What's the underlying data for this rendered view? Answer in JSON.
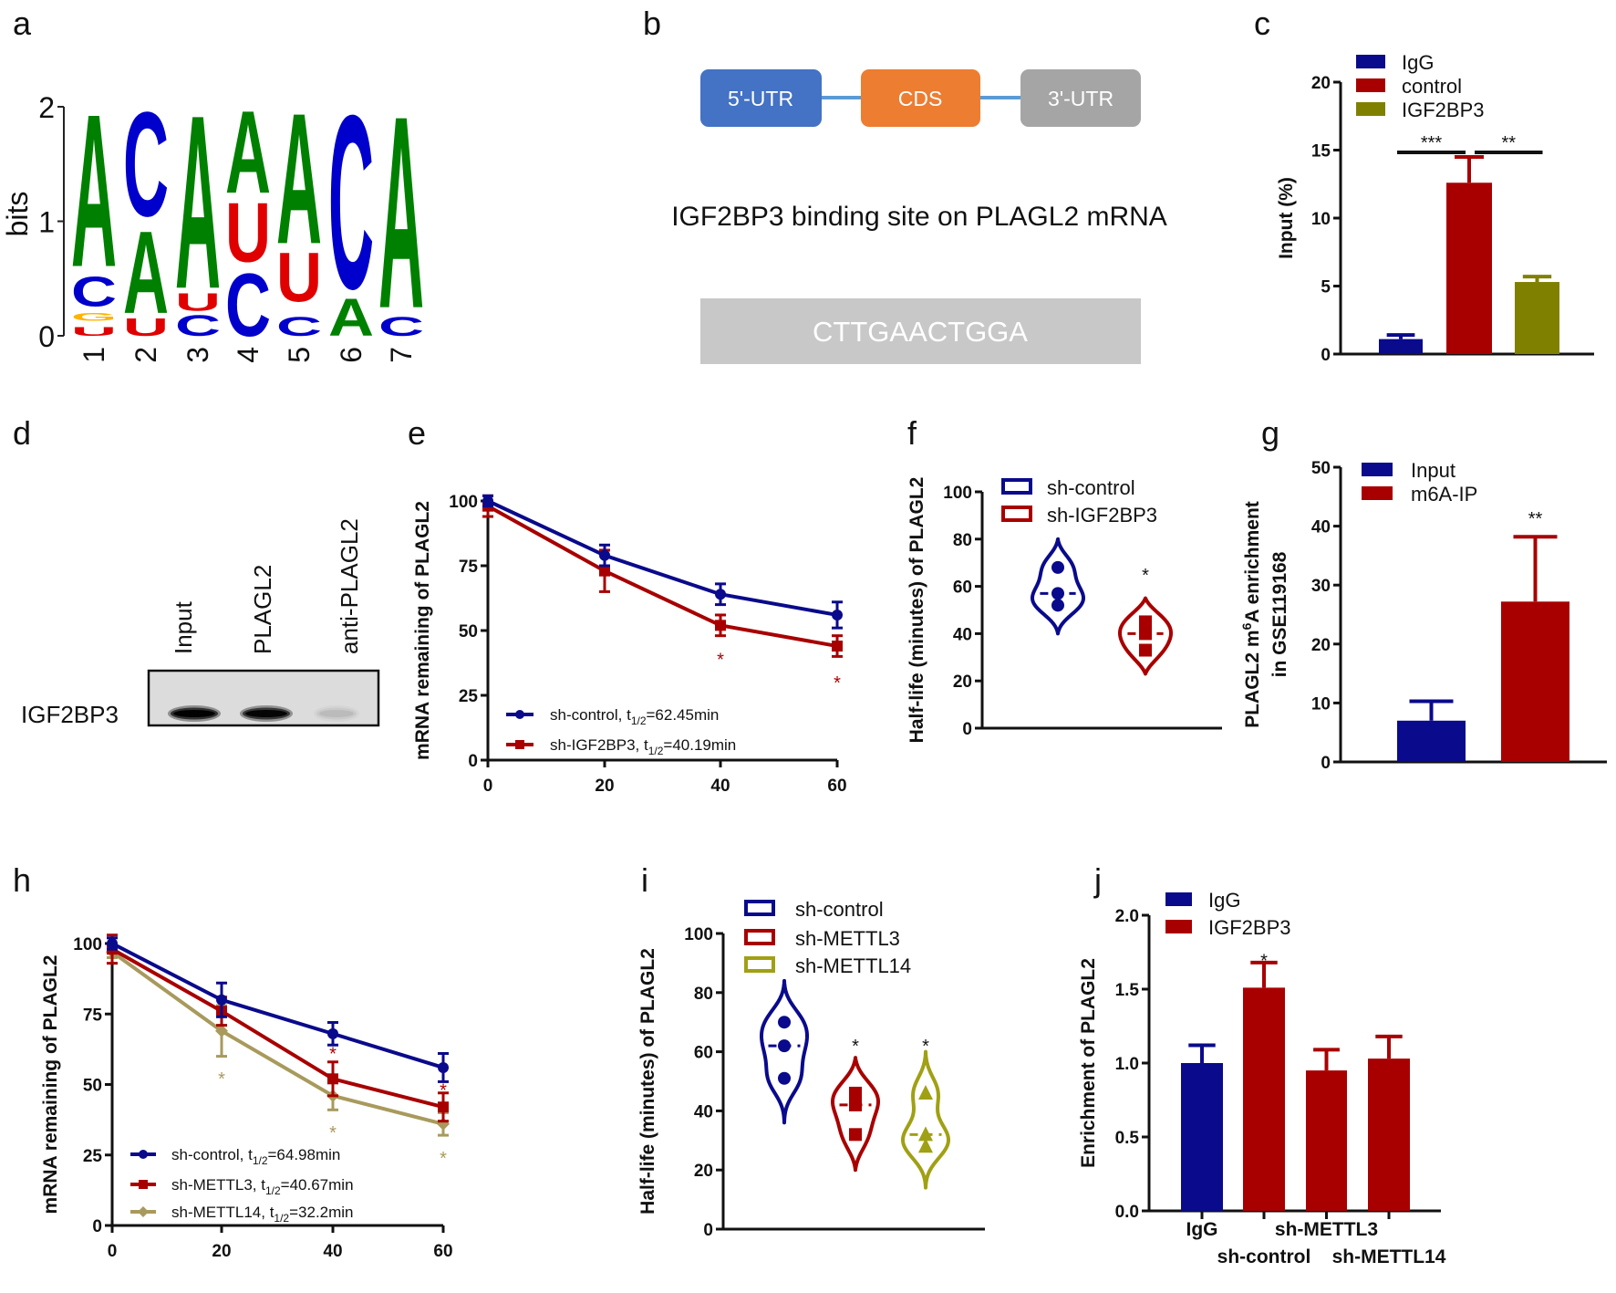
{
  "panel_labels": [
    "a",
    "b",
    "c",
    "d",
    "e",
    "f",
    "g",
    "h",
    "i",
    "j"
  ],
  "panel_b": {
    "boxes": [
      {
        "label": "5'-UTR",
        "color": "#4472c4"
      },
      {
        "label": "CDS",
        "color": "#ed7d31"
      },
      {
        "label": "3'-UTR",
        "color": "#a5a5a5"
      }
    ],
    "connector_color": "#5b9bd5",
    "caption": "IGF2BP3 binding site on PLAGL2 mRNA",
    "sequence": "CTTGAACTGGA",
    "sequence_box_color": "#c8c8c8"
  },
  "panel_d": {
    "lanes": [
      "Input",
      "PLAGL2",
      "anti-PLAGL2"
    ],
    "row_label": "IGF2BP3",
    "band_intensity": [
      1.0,
      0.95,
      0.08
    ]
  },
  "chart_data": [
    {
      "label": "a",
      "type": "sequence-logo",
      "ylabel": "bits",
      "ylim": [
        0,
        2
      ],
      "yticks": [
        "0",
        "1",
        "2"
      ],
      "positions": [
        "1",
        "2",
        "3",
        "4",
        "5",
        "6",
        "7"
      ],
      "letter_colors": {
        "A": "#008000",
        "C": "#0000cc",
        "G": "#ffb300",
        "U": "#e00000"
      },
      "stacks": [
        [
          {
            "letter": "U",
            "bottom": 0,
            "top": 0.08
          },
          {
            "letter": "G",
            "bottom": 0.13,
            "top": 0.2
          },
          {
            "letter": "C",
            "bottom": 0.26,
            "top": 0.53
          },
          {
            "letter": "A",
            "bottom": 0.61,
            "top": 2
          }
        ],
        [
          {
            "letter": "U",
            "bottom": 0,
            "top": 0.16
          },
          {
            "letter": "A",
            "bottom": 0.2,
            "top": 0.95
          },
          {
            "letter": "C",
            "bottom": 1.05,
            "top": 2
          }
        ],
        [
          {
            "letter": "C",
            "bottom": 0,
            "top": 0.19
          },
          {
            "letter": "U",
            "bottom": 0.22,
            "top": 0.38
          },
          {
            "letter": "A",
            "bottom": 0.42,
            "top": 2
          }
        ],
        [
          {
            "letter": "C",
            "bottom": 0,
            "top": 0.57
          },
          {
            "letter": "U",
            "bottom": 0.65,
            "top": 1.19
          },
          {
            "letter": "A",
            "bottom": 1.25,
            "top": 2
          }
        ],
        [
          {
            "letter": "C",
            "bottom": 0,
            "top": 0.17
          },
          {
            "letter": "U",
            "bottom": 0.3,
            "top": 0.75
          },
          {
            "letter": "A",
            "bottom": 0.81,
            "top": 2
          }
        ],
        [
          {
            "letter": "A",
            "bottom": 0,
            "top": 0.34
          },
          {
            "letter": "C",
            "bottom": 0.42,
            "top": 2
          }
        ],
        [
          {
            "letter": "C",
            "bottom": 0,
            "top": 0.17
          },
          {
            "letter": "A",
            "bottom": 0.25,
            "top": 2
          }
        ]
      ]
    },
    {
      "label": "c",
      "type": "bar",
      "ylabel": "Input (%)",
      "ylim": [
        0,
        20
      ],
      "yticks": [
        "0",
        "5",
        "10",
        "15",
        "20"
      ],
      "categories": [
        "IgG",
        "control",
        "IGF2BP3"
      ],
      "values": [
        1.1,
        12.6,
        5.3
      ],
      "error_upper": [
        1.4,
        14.5,
        5.7
      ],
      "colors": [
        "#0a0a8c",
        "#a80000",
        "#808000"
      ],
      "legend": [
        {
          "label": "IgG",
          "color": "#0a0a8c"
        },
        {
          "label": "control",
          "color": "#a80000"
        },
        {
          "label": "IGF2BP3",
          "color": "#808000"
        }
      ],
      "significance": [
        {
          "from": 0,
          "to": 1,
          "text": "***"
        },
        {
          "from": 1,
          "to": 2,
          "text": "**"
        }
      ]
    },
    {
      "label": "e",
      "type": "line",
      "ylabel": "mRNA remaining of PLAGL2",
      "ylim": [
        0,
        100
      ],
      "yticks": [
        "0",
        "25",
        "50",
        "75",
        "100"
      ],
      "x": [
        0,
        20,
        40,
        60
      ],
      "xticks": [
        "0",
        "20",
        "40",
        "60"
      ],
      "series": [
        {
          "name": "sh-control",
          "legend_before": "sh-control, t",
          "legend_sub": "1/2",
          "legend_after": "=62.45min",
          "color": "#0a0a8c",
          "marker": "circle",
          "values": [
            100,
            79,
            64,
            56
          ],
          "errors": [
            2,
            4,
            4,
            5
          ]
        },
        {
          "name": "sh-IGF2BP3",
          "legend_before": "sh-IGF2BP3, t",
          "legend_sub": "1/2",
          "legend_after": "=40.19min",
          "color": "#a80000",
          "marker": "square",
          "values": [
            98,
            73,
            52,
            44
          ],
          "errors": [
            4,
            8,
            4,
            4
          ]
        }
      ],
      "annotations": [
        {
          "x": 40,
          "y": 40,
          "text": "*",
          "color": "#a80000"
        },
        {
          "x": 60,
          "y": 31,
          "text": "*",
          "color": "#a80000"
        }
      ]
    },
    {
      "label": "f",
      "type": "violin",
      "ylabel": "Half-life (minutes) of PLAGL2",
      "ylim": [
        0,
        100
      ],
      "yticks": [
        "0",
        "20",
        "40",
        "60",
        "80",
        "100"
      ],
      "groups": [
        {
          "name": "sh-control",
          "color": "#0a0a8c",
          "marker": "circle",
          "points": [
            68,
            57,
            52
          ],
          "extent": [
            40,
            80
          ]
        },
        {
          "name": "sh-IGF2BP3",
          "color": "#a80000",
          "marker": "square",
          "points": [
            45,
            40,
            33
          ],
          "extent": [
            23,
            55
          ]
        }
      ],
      "annotations": [
        {
          "group": 1,
          "y": 66,
          "text": "*"
        }
      ]
    },
    {
      "label": "g",
      "type": "bar",
      "ylabel_parts": {
        "before": "PLAGL2 m",
        "sup": "6",
        "after": "A enrichment",
        "line2": "in GSE119168"
      },
      "ylim": [
        0,
        50
      ],
      "yticks": [
        "0",
        "10",
        "20",
        "30",
        "40",
        "50"
      ],
      "categories": [
        "Input",
        "m6A-IP"
      ],
      "values": [
        7,
        27.2
      ],
      "error_upper": [
        10.3,
        38.2
      ],
      "colors": [
        "#0a0a8c",
        "#a80000"
      ],
      "legend": [
        {
          "label": "Input",
          "color": "#0a0a8c"
        },
        {
          "label": "m6A-IP",
          "color": "#a80000"
        }
      ],
      "annotations": [
        {
          "category": 1,
          "y": 41.5,
          "text": "**"
        }
      ]
    },
    {
      "label": "h",
      "type": "line",
      "ylabel": "mRNA remaining of PLAGL2",
      "ylim": [
        0,
        100
      ],
      "yticks": [
        "0",
        "25",
        "50",
        "75",
        "100"
      ],
      "x": [
        0,
        20,
        40,
        60
      ],
      "xticks": [
        "0",
        "20",
        "40",
        "60"
      ],
      "series": [
        {
          "name": "sh-control",
          "legend_before": "sh-control, t",
          "legend_sub": "1/2",
          "legend_after": "=64.98min",
          "color": "#0a0a8c",
          "marker": "circle",
          "values": [
            100,
            80,
            68,
            56
          ],
          "errors": [
            2,
            6,
            4,
            5
          ]
        },
        {
          "name": "sh-METTL3",
          "legend_before": "sh-METTL3, t",
          "legend_sub": "1/2",
          "legend_after": "=40.67min",
          "color": "#a80000",
          "marker": "square",
          "values": [
            98,
            76,
            52,
            42
          ],
          "errors": [
            5,
            5,
            6,
            5
          ]
        },
        {
          "name": "sh-METTL14",
          "legend_before": "sh-METTL14, t",
          "legend_sub": "1/2",
          "legend_after": "=32.2min",
          "color": "#a89a5c",
          "marker": "diamond",
          "values": [
            97,
            69,
            46,
            36
          ],
          "errors": [
            2,
            9,
            5,
            4
          ]
        }
      ],
      "annotations": [
        {
          "x": 40,
          "y": 62,
          "text": "*",
          "color": "#a80000"
        },
        {
          "x": 60,
          "y": 49,
          "text": "*",
          "color": "#a80000"
        },
        {
          "x": 20,
          "y": 53,
          "text": "*",
          "color": "#a89a5c"
        },
        {
          "x": 40,
          "y": 34,
          "text": "*",
          "color": "#a89a5c"
        },
        {
          "x": 60,
          "y": 25,
          "text": "*",
          "color": "#a89a5c"
        }
      ]
    },
    {
      "label": "i",
      "type": "violin",
      "ylabel": "Half-life (minutes) of PLAGL2",
      "ylim": [
        0,
        100
      ],
      "yticks": [
        "0",
        "20",
        "40",
        "60",
        "80",
        "100"
      ],
      "groups": [
        {
          "name": "sh-control",
          "color": "#0a0a8c",
          "marker": "circle",
          "points": [
            70,
            62,
            51
          ],
          "extent": [
            36,
            84
          ]
        },
        {
          "name": "sh-METTL3",
          "color": "#a80000",
          "marker": "square",
          "points": [
            46,
            42,
            32
          ],
          "extent": [
            20,
            58
          ]
        },
        {
          "name": "sh-METTL14",
          "color": "#a0a014",
          "marker": "triangle",
          "points": [
            46,
            32,
            28
          ],
          "extent": [
            14,
            60
          ]
        }
      ],
      "annotations": [
        {
          "group": 1,
          "y": 63,
          "text": "*"
        },
        {
          "group": 2,
          "y": 63,
          "text": "*"
        }
      ]
    },
    {
      "label": "j",
      "type": "bar",
      "ylabel": "Enrichment of PLAGL2",
      "ylim": [
        0,
        2
      ],
      "yticks": [
        "0.0",
        "0.5",
        "1.0",
        "1.5",
        "2.0"
      ],
      "categories": [
        "IgG",
        "sh-control",
        "sh-METTL3",
        "sh-METTL14"
      ],
      "values": [
        1.0,
        1.51,
        0.95,
        1.03
      ],
      "error_upper": [
        1.12,
        1.68,
        1.09,
        1.18
      ],
      "colors": [
        "#0a0a8c",
        "#a80000",
        "#a80000",
        "#a80000"
      ],
      "legend": [
        {
          "label": "IgG",
          "color": "#0a0a8c"
        },
        {
          "label": "IGF2BP3",
          "color": "#a80000"
        }
      ],
      "annotations": [
        {
          "category": 1,
          "y": 1.7,
          "text": "*"
        }
      ]
    }
  ]
}
